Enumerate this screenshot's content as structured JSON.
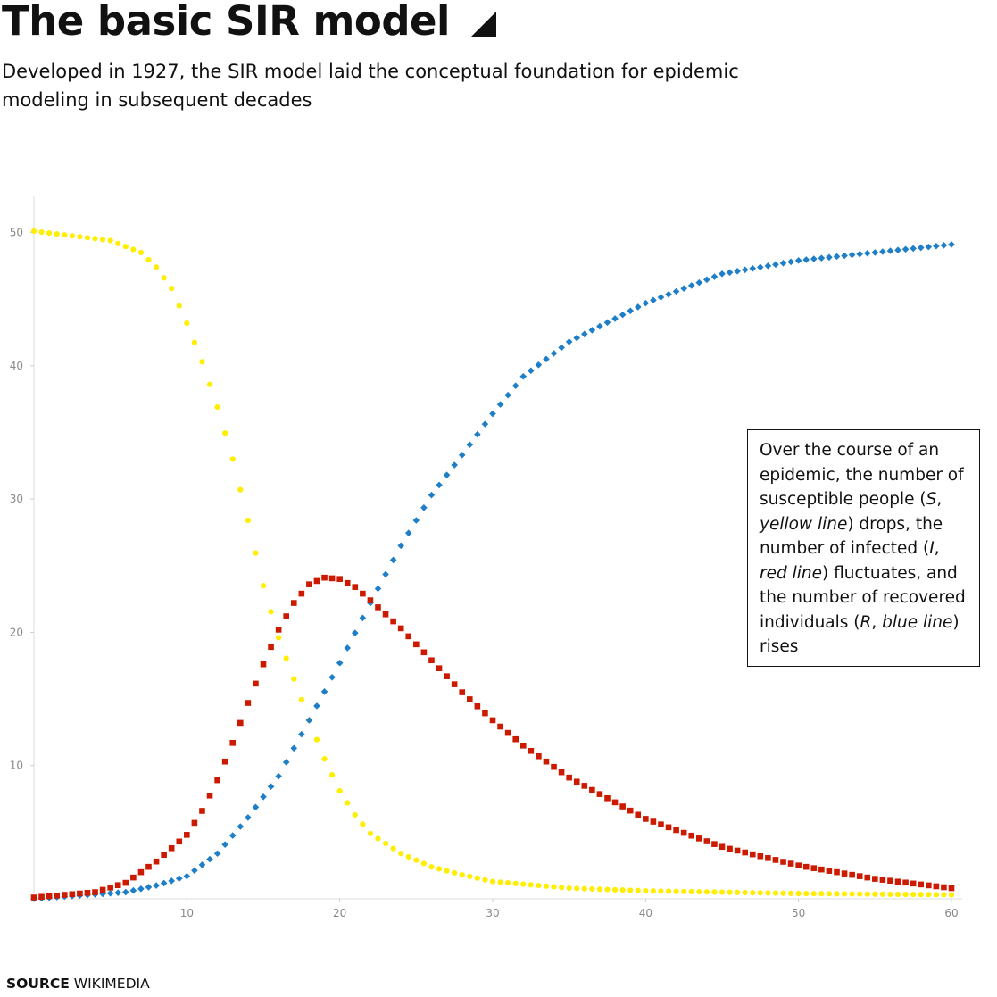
{
  "header": {
    "title": "The basic SIR model",
    "subtitle": "Developed in 1927, the SIR model laid the conceptual foundation for epidemic modeling in subsequent decades"
  },
  "annotation": {
    "p1": "Over the course of an epidemic, the number of susceptible people (",
    "s_letter": "S",
    "s_sep": ", ",
    "s_line": "yellow line",
    "p2": ") drops, the number of infected (",
    "i_letter": "I",
    "i_sep": ", ",
    "i_line": "red line",
    "p3": ") fluctuates, and the number of recovered individuals (",
    "r_letter": "R",
    "r_sep": ", ",
    "r_line": "blue line",
    "p4": ") rises"
  },
  "source": {
    "label": "SOURCE",
    "text": "WIKIMEDIA"
  },
  "chart_data": {
    "type": "scatter",
    "title": "",
    "xlabel": "",
    "ylabel": "",
    "xlim": [
      0,
      60
    ],
    "ylim": [
      0,
      53
    ],
    "x_ticks": [
      10,
      20,
      30,
      40,
      50,
      60
    ],
    "y_ticks": [
      10,
      20,
      30,
      40,
      50
    ],
    "grid": false,
    "colors": {
      "S": "#ffee00",
      "I": "#cc1a00",
      "R": "#1e7fc8",
      "tick": "#888888",
      "axis": "#dddddd"
    },
    "series": [
      {
        "key": "S",
        "marker": "circle",
        "x": [
          0,
          5,
          7,
          8,
          9,
          10,
          11,
          12,
          13,
          14,
          15,
          16,
          17,
          18,
          19,
          20,
          21,
          22,
          24,
          26,
          28,
          30,
          35,
          40,
          50,
          60
        ],
        "values": [
          50.1,
          49.4,
          48.5,
          47.4,
          45.8,
          43.2,
          40.3,
          36.9,
          33.0,
          28.4,
          23.5,
          19.6,
          16.5,
          13.4,
          10.5,
          8.1,
          6.3,
          4.9,
          3.4,
          2.4,
          1.8,
          1.3,
          0.8,
          0.6,
          0.4,
          0.3
        ]
      },
      {
        "key": "I",
        "marker": "square",
        "x": [
          0,
          4,
          6,
          8,
          10,
          11,
          12,
          13,
          14,
          15,
          16,
          17,
          18,
          19,
          20,
          21,
          22,
          24,
          26,
          28,
          30,
          32,
          35,
          40,
          45,
          50,
          55,
          60
        ],
        "values": [
          0.1,
          0.5,
          1.2,
          2.8,
          4.8,
          6.6,
          8.9,
          11.7,
          14.7,
          17.6,
          20.2,
          22.2,
          23.6,
          24.1,
          24.0,
          23.4,
          22.4,
          20.3,
          17.9,
          15.5,
          13.4,
          11.5,
          9.1,
          6.0,
          3.9,
          2.5,
          1.5,
          0.8
        ]
      },
      {
        "key": "R",
        "marker": "diamond",
        "x": [
          0,
          6,
          8,
          10,
          12,
          14,
          16,
          18,
          20,
          22,
          24,
          26,
          28,
          30,
          32,
          35,
          40,
          45,
          50,
          55,
          60
        ],
        "values": [
          0,
          0.5,
          1.0,
          1.7,
          3.4,
          6.1,
          9.2,
          13.4,
          17.7,
          22.2,
          26.5,
          30.3,
          33.3,
          36.4,
          39.2,
          41.8,
          44.7,
          46.9,
          47.9,
          48.5,
          49.1
        ]
      }
    ]
  }
}
